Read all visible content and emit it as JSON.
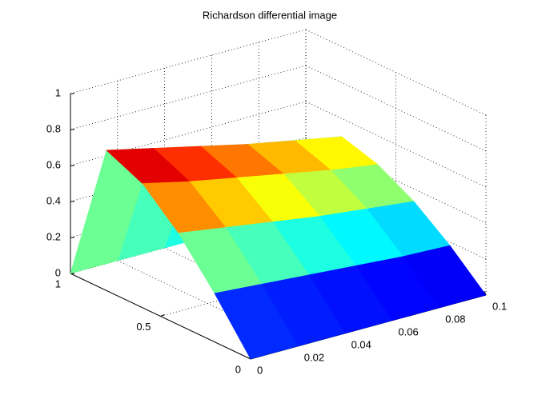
{
  "chart_data": {
    "type": "surface",
    "title": "Richardson differential image",
    "x": [
      0,
      0.02,
      0.04,
      0.06,
      0.08,
      0.1
    ],
    "y": [
      0,
      0.2,
      0.4,
      0.6,
      0.8,
      1
    ],
    "z": [
      [
        0,
        0,
        0,
        0,
        0,
        0
      ],
      [
        0.27,
        0.25,
        0.23,
        0.21,
        0.19,
        0.18
      ],
      [
        0.51,
        0.47,
        0.43,
        0.39,
        0.36,
        0.33
      ],
      [
        0.69,
        0.63,
        0.58,
        0.53,
        0.48,
        0.44
      ],
      [
        0.78,
        0.72,
        0.66,
        0.6,
        0.55,
        0.5
      ],
      [
        0,
        0,
        0,
        0,
        0,
        0
      ]
    ],
    "xlim": [
      0,
      0.1
    ],
    "ylim": [
      0,
      1
    ],
    "zlim": [
      0,
      1
    ],
    "xticks": [
      0,
      0.02,
      0.04,
      0.06,
      0.08,
      0.1
    ],
    "yticks": [
      0,
      0.5,
      1
    ],
    "zticks": [
      0,
      0.2,
      0.4,
      0.6,
      0.8,
      1
    ],
    "grid": true,
    "colormap": "jet"
  }
}
